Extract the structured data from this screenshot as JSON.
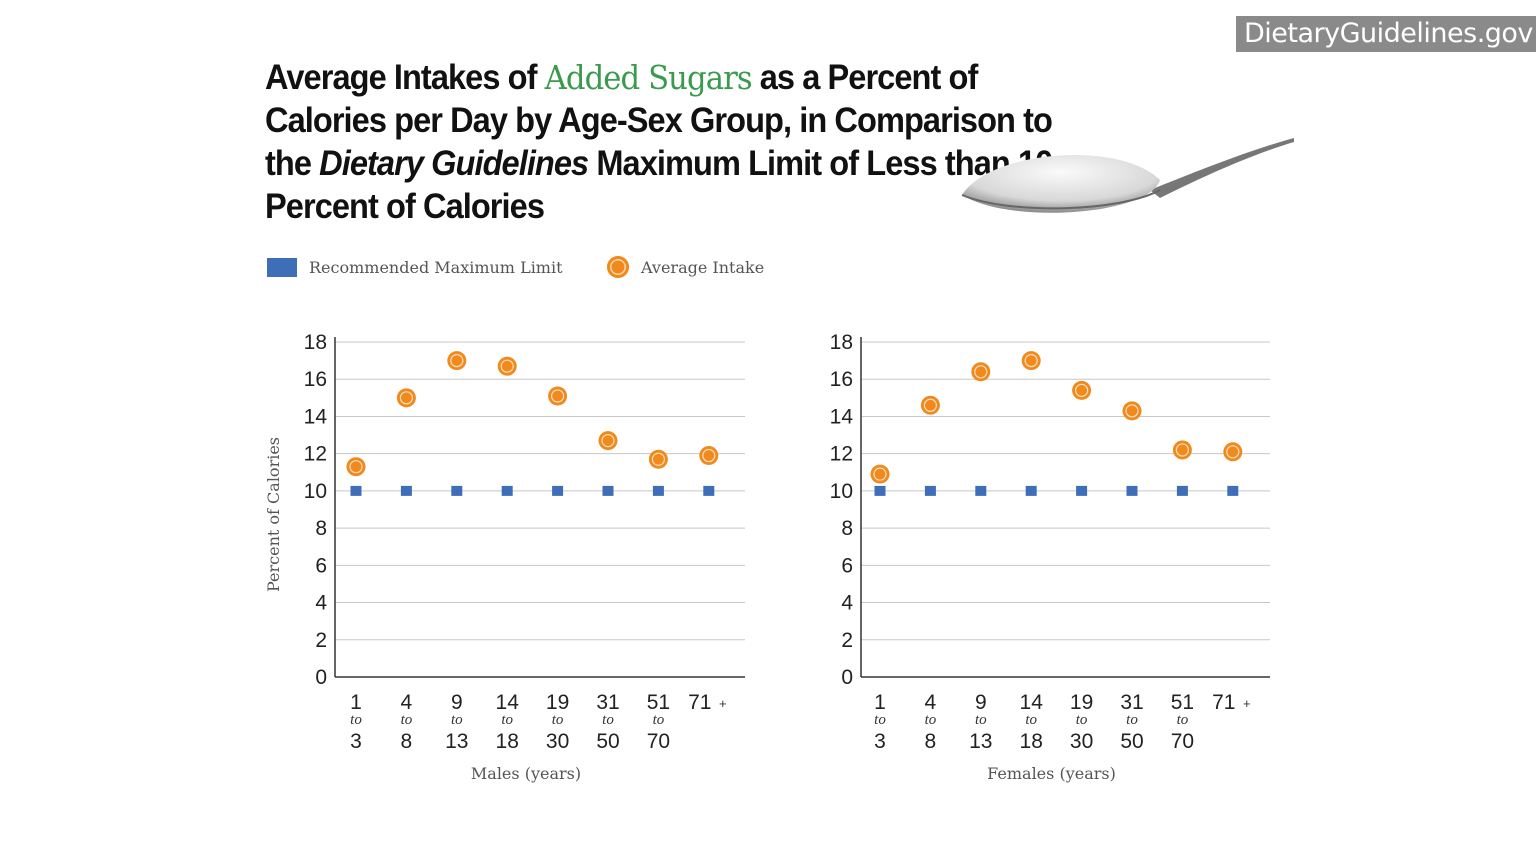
{
  "badge": "DietaryGuidelines.gov",
  "title": {
    "part1": "Average Intakes of ",
    "highlight": "Added Sugars",
    "part2": " as a Percent of Calories per Day by Age-Sex Group, in Comparison to the ",
    "italic": "Dietary Guidelines",
    "part3": " Maximum Limit of Less than 10 Percent of Calories"
  },
  "colors": {
    "limit": "#3e6eb8",
    "intake": "#f08a1e",
    "highlight": "#3a9a4e"
  },
  "legend": {
    "limit": "Recommended Maximum Limit",
    "intake": "Average Intake"
  },
  "chart_data": [
    {
      "type": "scatter",
      "xlabel": "Males (years)",
      "ylabel": "Percent of Calories",
      "ylim": [
        0,
        18
      ],
      "yticks": [
        "0",
        "2",
        "4",
        "6",
        "8",
        "10",
        "12",
        "14",
        "16",
        "18"
      ],
      "grid": true,
      "legend_position": "top-left",
      "categories": [
        {
          "from": "1",
          "to": "to",
          "end": "3"
        },
        {
          "from": "4",
          "to": "to",
          "end": "8"
        },
        {
          "from": "9",
          "to": "to",
          "end": "13"
        },
        {
          "from": "14",
          "to": "to",
          "end": "18"
        },
        {
          "from": "19",
          "to": "to",
          "end": "30"
        },
        {
          "from": "31",
          "to": "to",
          "end": "50"
        },
        {
          "from": "51",
          "to": "to",
          "end": "70"
        },
        {
          "from": "71",
          "to": "+",
          "end": ""
        }
      ],
      "series": [
        {
          "name": "Recommended Maximum Limit",
          "values": [
            10,
            10,
            10,
            10,
            10,
            10,
            10,
            10
          ]
        },
        {
          "name": "Average Intake",
          "values": [
            11.3,
            15.0,
            17.0,
            16.7,
            15.1,
            12.7,
            11.7,
            11.9
          ]
        }
      ]
    },
    {
      "type": "scatter",
      "xlabel": "Females (years)",
      "ylim": [
        0,
        18
      ],
      "yticks": [
        "0",
        "2",
        "4",
        "6",
        "8",
        "10",
        "12",
        "14",
        "16",
        "18"
      ],
      "grid": true,
      "categories": [
        {
          "from": "1",
          "to": "to",
          "end": "3"
        },
        {
          "from": "4",
          "to": "to",
          "end": "8"
        },
        {
          "from": "9",
          "to": "to",
          "end": "13"
        },
        {
          "from": "14",
          "to": "to",
          "end": "18"
        },
        {
          "from": "19",
          "to": "to",
          "end": "30"
        },
        {
          "from": "31",
          "to": "to",
          "end": "50"
        },
        {
          "from": "51",
          "to": "to",
          "end": "70"
        },
        {
          "from": "71",
          "to": "+",
          "end": ""
        }
      ],
      "series": [
        {
          "name": "Recommended Maximum Limit",
          "values": [
            10,
            10,
            10,
            10,
            10,
            10,
            10,
            10
          ]
        },
        {
          "name": "Average Intake",
          "values": [
            10.9,
            14.6,
            16.4,
            17.0,
            15.4,
            14.3,
            12.2,
            12.1
          ]
        }
      ]
    }
  ]
}
